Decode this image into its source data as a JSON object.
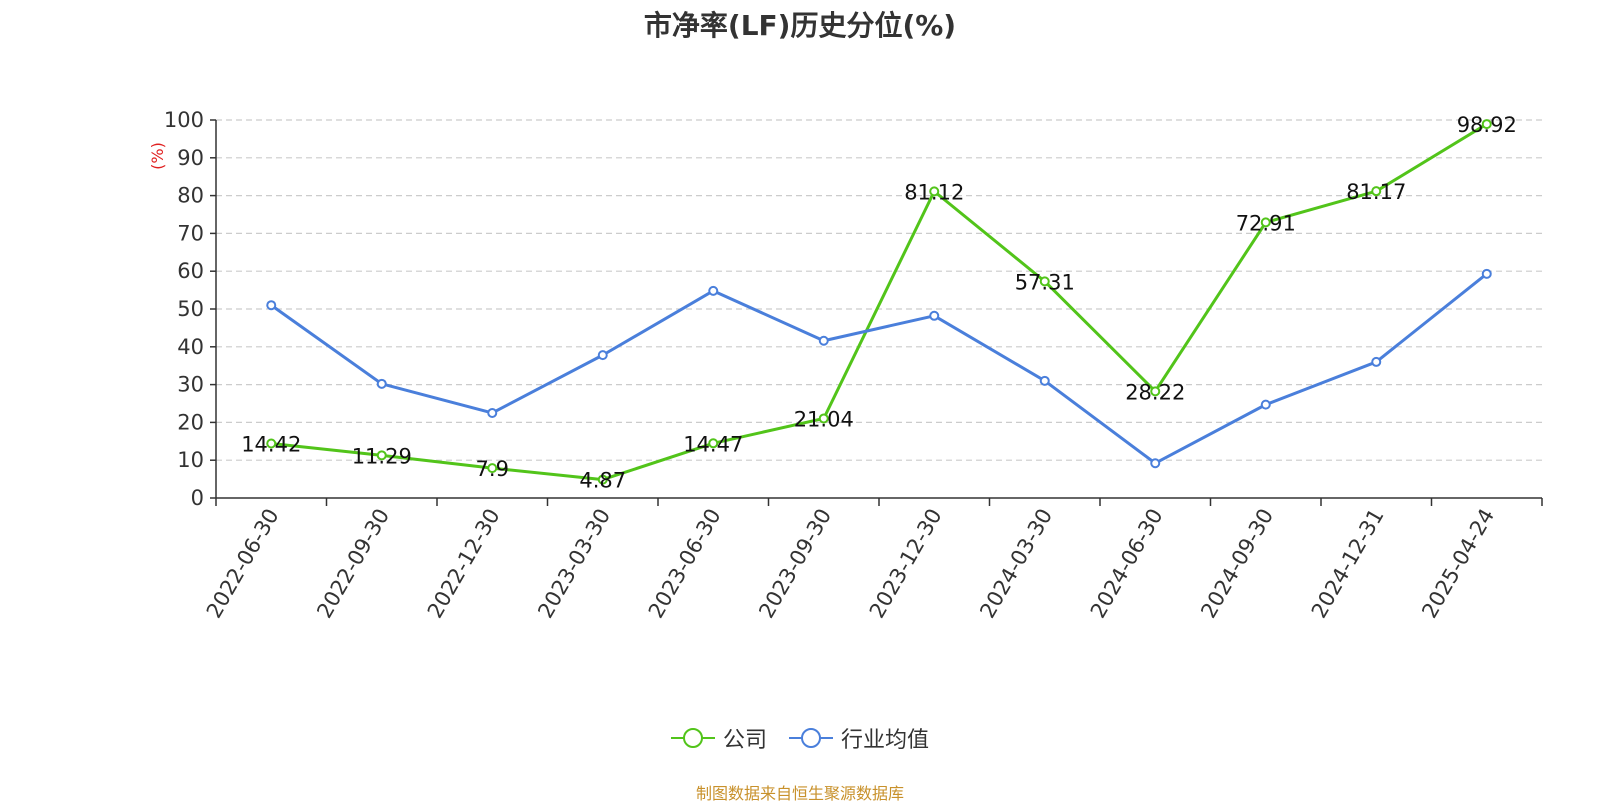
{
  "title": "市净率(LF)历史分位(%)",
  "source_note": "制图数据来自恒生聚源数据库",
  "chart_data": {
    "type": "line",
    "title": "市净率(LF)历史分位(%)",
    "ylabel": "(%)",
    "ylim": [
      0,
      100
    ],
    "yticks": [
      0,
      10,
      20,
      30,
      40,
      50,
      60,
      70,
      80,
      90,
      100
    ],
    "grid": true,
    "legend_position": "bottom",
    "categories": [
      "2022-06-30",
      "2022-09-30",
      "2022-12-30",
      "2023-03-30",
      "2023-06-30",
      "2023-09-30",
      "2023-12-30",
      "2024-03-30",
      "2024-06-30",
      "2024-09-30",
      "2024-12-31",
      "2025-04-24"
    ],
    "series": [
      {
        "name": "公司",
        "color": "#52c41a",
        "values": [
          14.42,
          11.29,
          7.9,
          4.87,
          14.47,
          21.04,
          81.12,
          57.31,
          28.22,
          72.91,
          81.17,
          98.92
        ],
        "labels": [
          "14.42",
          "11.29",
          "7.9",
          "4.87",
          "14.47",
          "21.04",
          "81.12",
          "57.31",
          "28.22",
          "72.91",
          "81.17",
          "98.92"
        ]
      },
      {
        "name": "行业均值",
        "color": "#4a7fdb",
        "values": [
          51.0,
          30.2,
          22.5,
          37.8,
          54.8,
          41.6,
          48.2,
          31.0,
          9.2,
          24.7,
          36.0,
          59.3
        ]
      }
    ]
  }
}
